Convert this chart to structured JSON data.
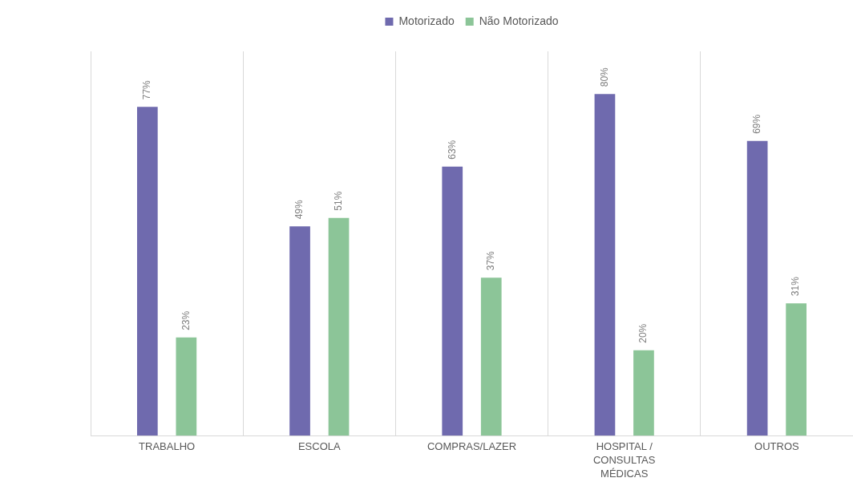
{
  "chart_data": {
    "type": "bar",
    "categories": [
      "TRABALHO",
      "ESCOLA",
      "COMPRAS/LAZER",
      "HOSPITAL / CONSULTAS MÉDICAS",
      "OUTROS"
    ],
    "series": [
      {
        "name": "Motorizado",
        "color": "#6f6aae",
        "values": [
          77,
          49,
          63,
          80,
          69
        ],
        "value_labels": [
          "77%",
          "49%",
          "63%",
          "80%",
          "69%"
        ]
      },
      {
        "name": "Não Motorizado",
        "color": "#8cc598",
        "values": [
          23,
          51,
          37,
          20,
          31
        ],
        "value_labels": [
          "23%",
          "51%",
          "37%",
          "20%",
          "31%"
        ]
      }
    ],
    "ylim": [
      0,
      90
    ],
    "grid": "x",
    "legend": "top",
    "tick_labels": "x"
  }
}
